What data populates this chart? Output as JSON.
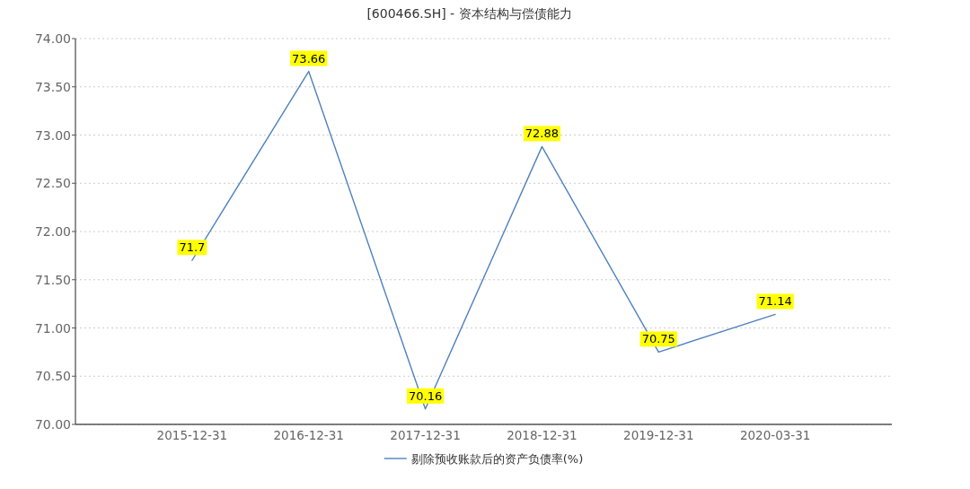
{
  "chart_data": {
    "type": "line",
    "title": "[600466.SH] - 资本结构与偿债能力",
    "categories": [
      "2015-12-31",
      "2016-12-31",
      "2017-12-31",
      "2018-12-31",
      "2019-12-31",
      "2020-03-31"
    ],
    "series": [
      {
        "name": "剔除预收账款后的资产负债率(%)",
        "color": "#4f81bd",
        "values": [
          71.7,
          73.66,
          70.16,
          72.88,
          70.75,
          71.14
        ]
      }
    ],
    "ylim": [
      70,
      74
    ],
    "yticks": [
      {
        "value": 70,
        "label": "70.00"
      },
      {
        "value": 70.5,
        "label": "70.50"
      },
      {
        "value": 71,
        "label": "71.00"
      },
      {
        "value": 71.5,
        "label": "71.50"
      },
      {
        "value": 72,
        "label": "72.00"
      },
      {
        "value": 72.5,
        "label": "72.50"
      },
      {
        "value": 73,
        "label": "73.00"
      },
      {
        "value": 73.5,
        "label": "73.50"
      },
      {
        "value": 74,
        "label": "74.00"
      }
    ],
    "grid": "y",
    "legend": "bottom",
    "data_labels": true
  }
}
